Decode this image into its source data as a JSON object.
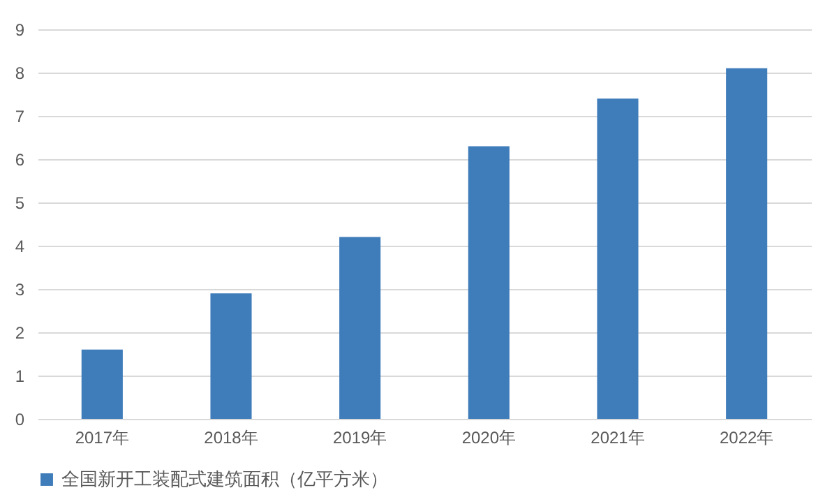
{
  "chart_data": {
    "type": "bar",
    "categories": [
      "2017年",
      "2018年",
      "2019年",
      "2020年",
      "2021年",
      "2022年"
    ],
    "series": [
      {
        "name": "全国新开工装配式建筑面积（亿平方米）",
        "color": "#3f7cba",
        "values": [
          1.6,
          2.9,
          4.2,
          6.3,
          7.4,
          8.1
        ]
      }
    ],
    "ylim": [
      0,
      9
    ],
    "yticks": [
      0,
      1,
      2,
      3,
      4,
      5,
      6,
      7,
      8,
      9
    ],
    "grid": "y",
    "legend": "bottom"
  }
}
